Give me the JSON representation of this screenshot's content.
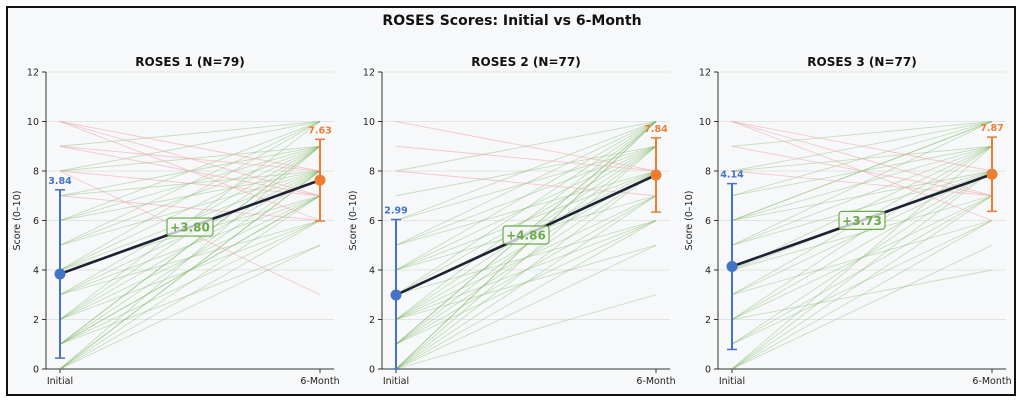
{
  "chart_data": {
    "type": "line",
    "title": "ROSES Scores: Initial vs 6-Month",
    "ylabel": "Score (0–10)",
    "ylim": [
      0,
      12
    ],
    "yticks": [
      "0",
      "2",
      "4",
      "6",
      "8",
      "10",
      "12"
    ],
    "categories": [
      "Initial",
      "6-Month"
    ],
    "colors": {
      "initial": "#4472c4",
      "followup": "#ed7d31",
      "mean_line": "#1f2033",
      "improve": "#6aab4a",
      "decline": "#f2a0a8",
      "grid": "#e3e3e3"
    },
    "panels": [
      {
        "title": "ROSES 1  (N=79)",
        "initial_mean": 3.84,
        "initial_sd": 3.4,
        "followup_mean": 7.63,
        "followup_sd": 1.65,
        "initial_label": "3.84",
        "followup_label": "7.63",
        "diff_label": "+3.80",
        "pairs": [
          [
            0,
            8
          ],
          [
            0,
            7
          ],
          [
            0,
            6
          ],
          [
            0,
            9
          ],
          [
            1,
            7
          ],
          [
            1,
            8
          ],
          [
            1,
            9
          ],
          [
            1,
            6
          ],
          [
            1,
            7
          ],
          [
            2,
            8
          ],
          [
            2,
            7
          ],
          [
            2,
            9
          ],
          [
            2,
            6
          ],
          [
            3,
            8
          ],
          [
            3,
            9
          ],
          [
            3,
            7
          ],
          [
            4,
            8
          ],
          [
            4,
            9
          ],
          [
            4,
            7
          ],
          [
            5,
            9
          ],
          [
            5,
            8
          ],
          [
            5,
            10
          ],
          [
            6,
            8
          ],
          [
            6,
            9
          ],
          [
            6,
            10
          ],
          [
            7,
            9
          ],
          [
            7,
            8
          ],
          [
            8,
            9
          ],
          [
            8,
            10
          ],
          [
            9,
            10
          ],
          [
            3,
            6
          ],
          [
            1,
            5
          ],
          [
            0,
            5
          ],
          [
            2,
            10
          ],
          [
            4,
            10
          ],
          [
            0,
            8
          ],
          [
            1,
            9
          ],
          [
            10,
            8
          ],
          [
            10,
            7
          ],
          [
            10,
            6
          ],
          [
            9,
            7
          ],
          [
            8,
            7
          ],
          [
            7,
            6
          ],
          [
            9,
            8
          ],
          [
            8,
            3
          ]
        ]
      },
      {
        "title": "ROSES 2  (N=77)",
        "initial_mean": 2.99,
        "initial_sd": 3.05,
        "followup_mean": 7.84,
        "followup_sd": 1.5,
        "initial_label": "2.99",
        "followup_label": "7.84",
        "diff_label": "+4.86",
        "pairs": [
          [
            0,
            10
          ],
          [
            0,
            9
          ],
          [
            0,
            8
          ],
          [
            0,
            7
          ],
          [
            0,
            6
          ],
          [
            0,
            5
          ],
          [
            0,
            3
          ],
          [
            1,
            10
          ],
          [
            1,
            9
          ],
          [
            1,
            8
          ],
          [
            1,
            7
          ],
          [
            1,
            6
          ],
          [
            2,
            10
          ],
          [
            2,
            9
          ],
          [
            2,
            8
          ],
          [
            2,
            7
          ],
          [
            2,
            6
          ],
          [
            3,
            9
          ],
          [
            3,
            8
          ],
          [
            3,
            10
          ],
          [
            4,
            10
          ],
          [
            4,
            9
          ],
          [
            4,
            8
          ],
          [
            5,
            9
          ],
          [
            5,
            10
          ],
          [
            6,
            10
          ],
          [
            6,
            9
          ],
          [
            7,
            9
          ],
          [
            8,
            10
          ],
          [
            3,
            6
          ],
          [
            4,
            7
          ],
          [
            5,
            8
          ],
          [
            0,
            10
          ],
          [
            1,
            10
          ],
          [
            2,
            5
          ],
          [
            10,
            8
          ],
          [
            9,
            8
          ],
          [
            8,
            7
          ]
        ]
      },
      {
        "title": "ROSES 3  (N=77)",
        "initial_mean": 4.14,
        "initial_sd": 3.35,
        "followup_mean": 7.87,
        "followup_sd": 1.5,
        "initial_label": "4.14",
        "followup_label": "7.87",
        "diff_label": "+3.73",
        "pairs": [
          [
            0,
            8
          ],
          [
            0,
            7
          ],
          [
            0,
            6
          ],
          [
            0,
            9
          ],
          [
            1,
            8
          ],
          [
            1,
            7
          ],
          [
            1,
            6
          ],
          [
            2,
            8
          ],
          [
            2,
            9
          ],
          [
            2,
            7
          ],
          [
            3,
            8
          ],
          [
            3,
            9
          ],
          [
            4,
            8
          ],
          [
            4,
            9
          ],
          [
            5,
            10
          ],
          [
            5,
            9
          ],
          [
            5,
            8
          ],
          [
            6,
            10
          ],
          [
            6,
            9
          ],
          [
            6,
            8
          ],
          [
            7,
            10
          ],
          [
            7,
            9
          ],
          [
            8,
            10
          ],
          [
            8,
            9
          ],
          [
            9,
            10
          ],
          [
            2,
            4
          ],
          [
            3,
            6
          ],
          [
            4,
            7
          ],
          [
            6,
            10
          ],
          [
            0,
            5
          ],
          [
            10,
            7
          ],
          [
            10,
            6
          ],
          [
            9,
            7
          ],
          [
            8,
            7
          ],
          [
            10,
            8
          ]
        ]
      }
    ]
  }
}
